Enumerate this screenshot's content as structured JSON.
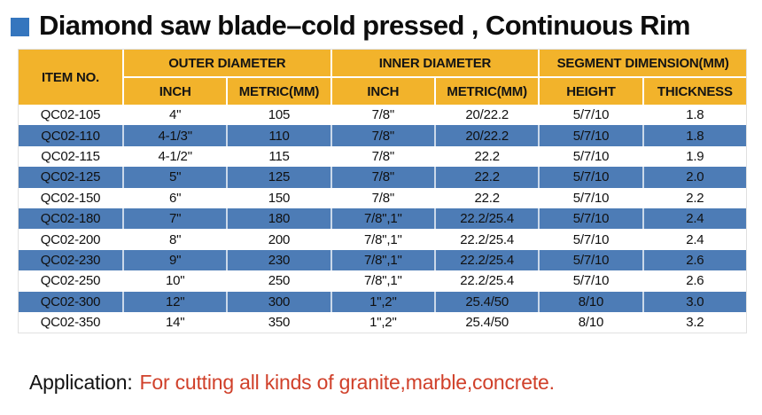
{
  "title": {
    "bullet_icon": "blue-square",
    "text": "Diamond saw blade–cold pressed , Continuous Rim"
  },
  "table": {
    "header": {
      "item_no": "ITEM NO.",
      "groups": [
        {
          "label": "OUTER DIAMETER",
          "subs": [
            "INCH",
            "METRIC(MM)"
          ]
        },
        {
          "label": "INNER DIAMETER",
          "subs": [
            "INCH",
            "METRIC(MM)"
          ]
        },
        {
          "label": "SEGMENT DIMENSION(MM)",
          "subs": [
            "HEIGHT",
            "THICKNESS"
          ]
        }
      ]
    },
    "rows": [
      [
        "QC02-105",
        "4\"",
        "105",
        "7/8\"",
        "20/22.2",
        "5/7/10",
        "1.8"
      ],
      [
        "QC02-110",
        "4-1/3\"",
        "110",
        "7/8\"",
        "20/22.2",
        "5/7/10",
        "1.8"
      ],
      [
        "QC02-115",
        "4-1/2\"",
        "115",
        "7/8\"",
        "22.2",
        "5/7/10",
        "1.9"
      ],
      [
        "QC02-125",
        "5\"",
        "125",
        "7/8\"",
        "22.2",
        "5/7/10",
        "2.0"
      ],
      [
        "QC02-150",
        "6\"",
        "150",
        "7/8\"",
        "22.2",
        "5/7/10",
        "2.2"
      ],
      [
        "QC02-180",
        "7\"",
        "180",
        "7/8\",1\"",
        "22.2/25.4",
        "5/7/10",
        "2.4"
      ],
      [
        "QC02-200",
        "8\"",
        "200",
        "7/8\",1\"",
        "22.2/25.4",
        "5/7/10",
        "2.4"
      ],
      [
        "QC02-230",
        "9\"",
        "230",
        "7/8\",1\"",
        "22.2/25.4",
        "5/7/10",
        "2.6"
      ],
      [
        "QC02-250",
        "10\"",
        "250",
        "7/8\",1\"",
        "22.2/25.4",
        "5/7/10",
        "2.6"
      ],
      [
        "QC02-300",
        "12\"",
        "300",
        "1\",2\"",
        "25.4/50",
        "8/10",
        "3.0"
      ],
      [
        "QC02-350",
        "14\"",
        "350",
        "1\",2\"",
        "25.4/50",
        "8/10",
        "3.2"
      ]
    ],
    "colors": {
      "header_bg": "#F2B32B",
      "row_blue": "#4D7CB6",
      "row_white": "#FFFFFF"
    }
  },
  "application": {
    "label": "Application:",
    "text": "For cutting all kinds of granite,marble,concrete.",
    "text_color": "#D0402A"
  },
  "accent": {
    "bullet_blue": "#3576BE"
  }
}
